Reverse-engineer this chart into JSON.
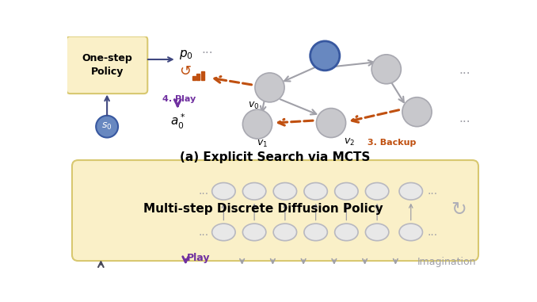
{
  "bg_color": "#ffffff",
  "box_color": "#faf0c8",
  "box_edge": "#d8c870",
  "node_gray_fill": "#c8c8cc",
  "node_gray_edge": "#a8a8b0",
  "node_blue_fill": "#6888c0",
  "node_blue_edge": "#3858a0",
  "orange": "#c05010",
  "purple": "#7030a0",
  "dark_blue_arrow": "#404880",
  "arrow_gray": "#a0a0a8",
  "title_a": "(a) Explicit Search via MCTS",
  "label_diffusion": "Multi-step Discrete Diffusion Policy",
  "label_play": "Play",
  "label_imagination": "Imagination",
  "label_backup": "3. Backup",
  "label_4play": "4. Play",
  "ellipse_fill": "#e8e8e8",
  "ellipse_edge": "#b8b8c0",
  "refresh_gray": "#b0b0b8"
}
